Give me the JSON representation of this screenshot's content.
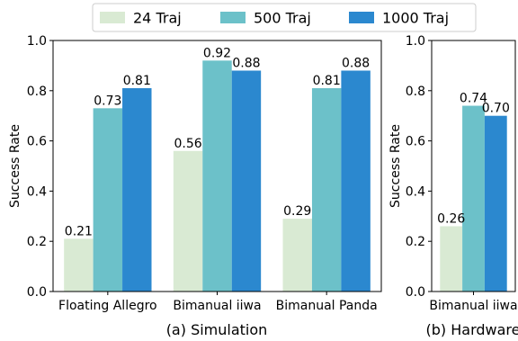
{
  "legend": {
    "placement": "top-center",
    "entries": [
      {
        "label": "24 Traj",
        "color": "#d9ead3"
      },
      {
        "label": "500 Traj",
        "color": "#6cc1c9"
      },
      {
        "label": "1000 Traj",
        "color": "#2b88cf"
      }
    ]
  },
  "chart_data": [
    {
      "type": "bar",
      "caption": "(a) Simulation",
      "xlabel": "",
      "ylabel": "Success Rate",
      "ylim": [
        0,
        1.0
      ],
      "yticks": [
        "0.0",
        "0.2",
        "0.4",
        "0.6",
        "0.8",
        "1.0"
      ],
      "grid": false,
      "categories": [
        "Floating Allegro",
        "Bimanual iiwa",
        "Bimanual Panda"
      ],
      "series": [
        {
          "name": "24 Traj",
          "values": [
            0.21,
            0.56,
            0.29
          ],
          "labels": [
            "0.21",
            "0.56",
            "0.29"
          ]
        },
        {
          "name": "500 Traj",
          "values": [
            0.73,
            0.92,
            0.81
          ],
          "labels": [
            "0.73",
            "0.92",
            "0.81"
          ]
        },
        {
          "name": "1000 Traj",
          "values": [
            0.81,
            0.88,
            0.88
          ],
          "labels": [
            "0.81",
            "0.88",
            "0.88"
          ]
        }
      ]
    },
    {
      "type": "bar",
      "caption": "(b) Hardware",
      "xlabel": "",
      "ylabel": "Success Rate",
      "ylim": [
        0,
        1.0
      ],
      "yticks": [
        "0.0",
        "0.2",
        "0.4",
        "0.6",
        "0.8",
        "1.0"
      ],
      "grid": false,
      "categories": [
        "Bimanual iiwa"
      ],
      "series": [
        {
          "name": "24 Traj",
          "values": [
            0.26
          ],
          "labels": [
            "0.26"
          ]
        },
        {
          "name": "500 Traj",
          "values": [
            0.74
          ],
          "labels": [
            "0.74"
          ]
        },
        {
          "name": "1000 Traj",
          "values": [
            0.7
          ],
          "labels": [
            "0.70"
          ]
        }
      ]
    }
  ]
}
